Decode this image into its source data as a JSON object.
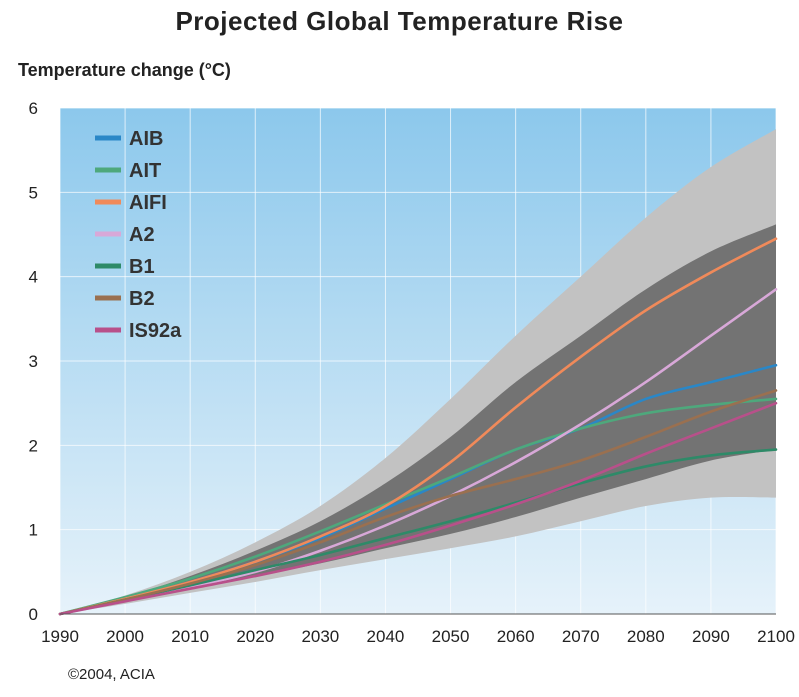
{
  "chart_data": {
    "type": "line",
    "title": "Projected Global Temperature Rise",
    "ylabel": "Temperature change (°C)",
    "xlabel": "",
    "xlim": [
      1990,
      2100
    ],
    "ylim": [
      0,
      6
    ],
    "x_ticks": [
      "1990",
      "2000",
      "2010",
      "2020",
      "2030",
      "2040",
      "2050",
      "2060",
      "2070",
      "2080",
      "2090",
      "2100"
    ],
    "y_ticks": [
      "0",
      "1",
      "2",
      "3",
      "4",
      "5",
      "6"
    ],
    "grid": true,
    "legend_position": "top-left",
    "background_gradient": [
      "#8cc8ec",
      "#e6f2fa"
    ],
    "bands": [
      {
        "kind": "outer-range",
        "color": "#c2c2c2",
        "x": [
          1990,
          2000,
          2010,
          2020,
          2030,
          2040,
          2050,
          2060,
          2070,
          2080,
          2090,
          2100
        ],
        "upper": [
          0,
          0.22,
          0.5,
          0.85,
          1.28,
          1.85,
          2.55,
          3.3,
          4.0,
          4.7,
          5.3,
          5.75
        ],
        "lower": [
          0,
          0.12,
          0.25,
          0.38,
          0.52,
          0.65,
          0.78,
          0.92,
          1.1,
          1.28,
          1.38,
          1.38
        ]
      },
      {
        "kind": "inner-range",
        "color": "#737373",
        "x": [
          1990,
          2000,
          2010,
          2020,
          2030,
          2040,
          2050,
          2060,
          2070,
          2080,
          2090,
          2100
        ],
        "upper": [
          0,
          0.2,
          0.45,
          0.75,
          1.1,
          1.55,
          2.1,
          2.75,
          3.3,
          3.85,
          4.3,
          4.62
        ],
        "lower": [
          0,
          0.15,
          0.3,
          0.45,
          0.6,
          0.78,
          0.95,
          1.15,
          1.38,
          1.6,
          1.82,
          1.95
        ]
      }
    ],
    "x": [
      1990,
      2000,
      2010,
      2020,
      2030,
      2040,
      2050,
      2060,
      2070,
      2080,
      2090,
      2100
    ],
    "series": [
      {
        "name": "AIB",
        "color": "#2a87c7",
        "values": [
          0,
          0.18,
          0.38,
          0.62,
          0.9,
          1.25,
          1.6,
          1.95,
          2.2,
          2.55,
          2.75,
          2.95
        ]
      },
      {
        "name": "AIT",
        "color": "#4ea87c",
        "values": [
          0,
          0.2,
          0.42,
          0.68,
          0.98,
          1.3,
          1.62,
          1.95,
          2.2,
          2.38,
          2.48,
          2.55
        ]
      },
      {
        "name": "AIFI",
        "color": "#f08a5a",
        "values": [
          0,
          0.18,
          0.38,
          0.62,
          0.92,
          1.28,
          1.8,
          2.45,
          3.05,
          3.6,
          4.05,
          4.45
        ]
      },
      {
        "name": "A2",
        "color": "#d8a8d8",
        "values": [
          0,
          0.16,
          0.32,
          0.5,
          0.75,
          1.05,
          1.4,
          1.8,
          2.25,
          2.75,
          3.3,
          3.85
        ]
      },
      {
        "name": "B1",
        "color": "#2e8a68",
        "values": [
          0,
          0.17,
          0.34,
          0.52,
          0.7,
          0.9,
          1.1,
          1.32,
          1.55,
          1.75,
          1.88,
          1.95
        ]
      },
      {
        "name": "B2",
        "color": "#9a7050",
        "values": [
          0,
          0.17,
          0.36,
          0.58,
          0.85,
          1.15,
          1.4,
          1.6,
          1.82,
          2.1,
          2.4,
          2.65
        ]
      },
      {
        "name": "IS92a",
        "color": "#b8508a",
        "values": [
          0,
          0.15,
          0.3,
          0.45,
          0.62,
          0.82,
          1.05,
          1.3,
          1.58,
          1.9,
          2.2,
          2.5
        ]
      }
    ],
    "credit": "©2004, ACIA"
  }
}
